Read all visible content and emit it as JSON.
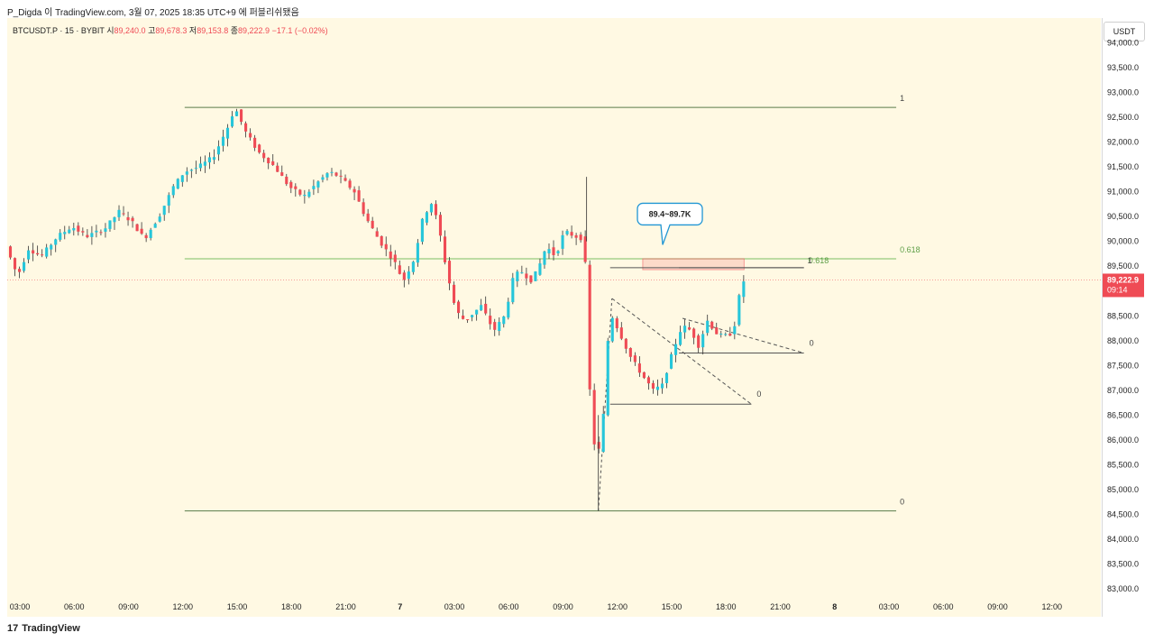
{
  "header": {
    "publish_line": "P_Digda 이 TradingView.com, 3월 07, 2025 18:35 UTC+9 에 퍼블리쉬됐음"
  },
  "legend": {
    "symbol": "BTCUSDT.P · 15 · BYBIT",
    "open_label": "시",
    "open_value": "89,240.0",
    "high_label": "고",
    "high_value": "89,678.3",
    "low_label": "저",
    "low_value": "89,153.8",
    "close_label": "종",
    "close_value": "89,222.9",
    "change": "−17.1 (−0.02%)"
  },
  "price_axis": {
    "currency": "USDT",
    "current_price": "89,222.9",
    "countdown": "09:14"
  },
  "footer": {
    "brand": "TradingView"
  },
  "colors": {
    "up": "#26c6da",
    "down": "#ef4b55",
    "fib_line": "#5a7d4a",
    "fib_618": "#7bbf63",
    "price_tag": "#ef4b55"
  },
  "chart_data": {
    "type": "candlestick",
    "title": "BTCUSDT.P · 15 · BYBIT",
    "ylabel": "USDT",
    "ylim": [
      82800,
      94500
    ],
    "y_ticks": [
      "83,000.0",
      "83,500.0",
      "84,000.0",
      "84,500.0",
      "85,000.0",
      "85,500.0",
      "86,000.0",
      "86,500.0",
      "87,000.0",
      "87,500.0",
      "88,000.0",
      "88,500.0",
      "89,000.0",
      "89,500.0",
      "90,000.0",
      "90,500.0",
      "91,000.0",
      "91,500.0",
      "92,000.0",
      "92,500.0",
      "93,000.0",
      "93,500.0",
      "94,000.0"
    ],
    "x_ticks": [
      {
        "label": "03:00",
        "t": 3
      },
      {
        "label": "06:00",
        "t": 6
      },
      {
        "label": "09:00",
        "t": 9
      },
      {
        "label": "12:00",
        "t": 12
      },
      {
        "label": "15:00",
        "t": 15
      },
      {
        "label": "18:00",
        "t": 18
      },
      {
        "label": "21:00",
        "t": 21
      },
      {
        "label": "7",
        "t": 24
      },
      {
        "label": "03:00",
        "t": 27
      },
      {
        "label": "06:00",
        "t": 30
      },
      {
        "label": "09:00",
        "t": 33
      },
      {
        "label": "12:00",
        "t": 36
      },
      {
        "label": "15:00",
        "t": 39
      },
      {
        "label": "18:00",
        "t": 42
      },
      {
        "label": "21:00",
        "t": 45
      },
      {
        "label": "8",
        "t": 48
      },
      {
        "label": "03:00",
        "t": 51
      },
      {
        "label": "06:00",
        "t": 54
      },
      {
        "label": "09:00",
        "t": 57
      },
      {
        "label": "12:00",
        "t": 60
      }
    ],
    "xlim": [
      2.3,
      62.7
    ],
    "price_path": [
      [
        2.35,
        89900
      ],
      [
        3,
        89300
      ],
      [
        3.6,
        89850
      ],
      [
        4.3,
        89700
      ],
      [
        5.2,
        90100
      ],
      [
        6,
        90300
      ],
      [
        6.8,
        90100
      ],
      [
        7.8,
        90250
      ],
      [
        8.6,
        90600
      ],
      [
        9.3,
        90400
      ],
      [
        10,
        90050
      ],
      [
        10.8,
        90500
      ],
      [
        11.6,
        91100
      ],
      [
        12.2,
        91400
      ],
      [
        13,
        91500
      ],
      [
        13.8,
        91700
      ],
      [
        14.6,
        92300
      ],
      [
        15,
        92700
      ],
      [
        15.6,
        92200
      ],
      [
        16.3,
        91800
      ],
      [
        17.2,
        91500
      ],
      [
        18,
        91100
      ],
      [
        18.8,
        90900
      ],
      [
        19.6,
        91200
      ],
      [
        20.2,
        91400
      ],
      [
        20.8,
        91300
      ],
      [
        21.6,
        91000
      ],
      [
        22.2,
        90500
      ],
      [
        23,
        90000
      ],
      [
        23.8,
        89600
      ],
      [
        24.3,
        89200
      ],
      [
        24.9,
        89650
      ],
      [
        25.4,
        90500
      ],
      [
        25.9,
        90800
      ],
      [
        26.3,
        90200
      ],
      [
        26.7,
        89400
      ],
      [
        27.2,
        88600
      ],
      [
        27.7,
        88400
      ],
      [
        28.6,
        88700
      ],
      [
        29.3,
        88200
      ],
      [
        29.9,
        88500
      ],
      [
        30.4,
        89300
      ],
      [
        30.8,
        89400
      ],
      [
        31.4,
        89200
      ],
      [
        31.8,
        89500
      ],
      [
        32.2,
        89900
      ],
      [
        32.7,
        89700
      ],
      [
        33.2,
        90200
      ],
      [
        33.8,
        90100
      ],
      [
        34.3,
        90050
      ],
      [
        34.6,
        87000
      ],
      [
        34.95,
        85500
      ],
      [
        35.3,
        86200
      ],
      [
        35.7,
        88600
      ],
      [
        36.2,
        88200
      ],
      [
        36.8,
        87700
      ],
      [
        37.5,
        87300
      ],
      [
        38.1,
        87000
      ],
      [
        38.6,
        87100
      ],
      [
        39.2,
        87800
      ],
      [
        39.7,
        88300
      ],
      [
        40.2,
        88200
      ],
      [
        40.6,
        87900
      ],
      [
        41.1,
        88400
      ],
      [
        41.7,
        88100
      ],
      [
        42.3,
        88100
      ],
      [
        42.7,
        88400
      ],
      [
        42.95,
        89200
      ]
    ],
    "fib_levels": [
      {
        "label": "1",
        "price": 92700,
        "x_from": 12.1,
        "x_to": 51.4
      },
      {
        "label": "0.618",
        "price": 89650,
        "x_from": 12.1,
        "x_to": 51.4
      },
      {
        "label": "0",
        "price": 84570,
        "x_from": 12.1,
        "x_to": 51.4
      }
    ],
    "pattern_levels": [
      {
        "label": "0.618",
        "price": 89470,
        "x_from": 35.6,
        "x_to": 46.3
      },
      {
        "label": "1",
        "price": 89470,
        "x_from": 39.4,
        "x_to": 46.3
      },
      {
        "label": "0",
        "price": 87750,
        "x_from": 39.4,
        "x_to": 46.3
      },
      {
        "label": "0",
        "price": 86720,
        "x_from": 35.6,
        "x_to": 43.4
      }
    ],
    "triangle_lines": [
      {
        "from": [
          35.7,
          88850
        ],
        "to": [
          43.4,
          86720
        ]
      },
      {
        "from": [
          39.6,
          88450
        ],
        "to": [
          46.3,
          87750
        ]
      },
      {
        "from": [
          39.6,
          87750
        ],
        "to": [
          46.3,
          87750
        ]
      }
    ],
    "target_zone": {
      "label": "89.4~89.7K",
      "low": 89430,
      "high": 89650,
      "x_from": 37.4,
      "x_to": 43.0
    },
    "current_price": 89222.9
  }
}
